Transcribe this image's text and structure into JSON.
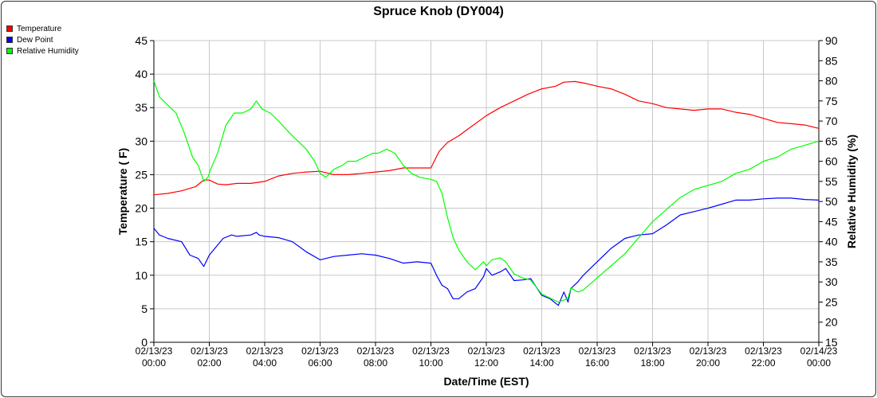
{
  "chart_data": {
    "type": "line",
    "title": "Spruce Knob (DY004)",
    "xlabel": "Date/Time (EST)",
    "ylabel_left": "Temperature ( F)",
    "ylabel_right": "Relative Humidity (%)",
    "ylim_left": [
      0,
      45
    ],
    "ylim_right": [
      15,
      90
    ],
    "yticks_left": [
      0,
      5,
      10,
      15,
      20,
      25,
      30,
      35,
      40,
      45
    ],
    "yticks_right": [
      15,
      20,
      25,
      30,
      35,
      40,
      45,
      50,
      55,
      60,
      65,
      70,
      75,
      80,
      85,
      90
    ],
    "xlim_hours": [
      0,
      24
    ],
    "xticks": [
      {
        "hour": 0,
        "date": "02/13/23",
        "time": "00:00"
      },
      {
        "hour": 2,
        "date": "02/13/23",
        "time": "02:00"
      },
      {
        "hour": 4,
        "date": "02/13/23",
        "time": "04:00"
      },
      {
        "hour": 6,
        "date": "02/13/23",
        "time": "06:00"
      },
      {
        "hour": 8,
        "date": "02/13/23",
        "time": "08:00"
      },
      {
        "hour": 10,
        "date": "02/13/23",
        "time": "10:00"
      },
      {
        "hour": 12,
        "date": "02/13/23",
        "time": "12:00"
      },
      {
        "hour": 14,
        "date": "02/13/23",
        "time": "14:00"
      },
      {
        "hour": 16,
        "date": "02/13/23",
        "time": "16:00"
      },
      {
        "hour": 18,
        "date": "02/13/23",
        "time": "18:00"
      },
      {
        "hour": 20,
        "date": "02/13/23",
        "time": "20:00"
      },
      {
        "hour": 22,
        "date": "02/13/23",
        "time": "22:00"
      },
      {
        "hour": 24,
        "date": "02/14/23",
        "time": "00:00"
      }
    ],
    "grid": true,
    "legend_position": "top-left",
    "series": [
      {
        "name": "Temperature",
        "color": "#ff0000",
        "axis": "left",
        "x": [
          0,
          0.5,
          1,
          1.5,
          1.8,
          2,
          2.3,
          2.6,
          3,
          3.5,
          4,
          4.5,
          5,
          5.5,
          6,
          6.5,
          7,
          7.5,
          8,
          8.5,
          9,
          9.5,
          10,
          10.3,
          10.6,
          11,
          11.5,
          12,
          12.5,
          13,
          13.5,
          14,
          14.5,
          14.8,
          15.2,
          15.6,
          16,
          16.5,
          17,
          17.5,
          18,
          18.5,
          19,
          19.5,
          20,
          20.5,
          21,
          21.5,
          22,
          22.5,
          23,
          23.5,
          24
        ],
        "y": [
          22,
          22.2,
          22.6,
          23.2,
          24.2,
          24.2,
          23.6,
          23.5,
          23.7,
          23.7,
          24,
          24.8,
          25.2,
          25.4,
          25.5,
          25,
          25,
          25.2,
          25.4,
          25.6,
          26,
          26,
          26,
          28.5,
          29.8,
          30.8,
          32.3,
          33.8,
          35,
          36,
          37,
          37.8,
          38.2,
          38.8,
          38.9,
          38.6,
          38.2,
          37.8,
          37,
          36,
          35.6,
          35,
          34.8,
          34.6,
          34.8,
          34.8,
          34.3,
          34,
          33.4,
          32.8,
          32.6,
          32.4,
          31.9
        ]
      },
      {
        "name": "Dew Point",
        "color": "#0000ff",
        "axis": "left",
        "x": [
          0,
          0.2,
          0.5,
          1,
          1.3,
          1.6,
          1.8,
          2,
          2.2,
          2.5,
          2.8,
          3,
          3.5,
          3.7,
          3.8,
          4,
          4.5,
          5,
          5.5,
          6,
          6.5,
          7,
          7.5,
          8,
          8.5,
          9,
          9.5,
          10,
          10.2,
          10.4,
          10.6,
          10.8,
          11,
          11.3,
          11.6,
          11.9,
          12,
          12.2,
          12.5,
          12.7,
          13,
          13.3,
          13.6,
          14,
          14.3,
          14.6,
          14.8,
          14.95,
          15.05,
          15.3,
          15.5,
          16,
          16.5,
          17,
          17.5,
          18,
          18.5,
          19,
          19.5,
          20,
          20.5,
          21,
          21.5,
          22,
          22.5,
          23,
          23.5,
          24
        ],
        "y": [
          17,
          16,
          15.5,
          15,
          13,
          12.5,
          11.3,
          13,
          14,
          15.5,
          16,
          15.8,
          16,
          16.4,
          16,
          15.8,
          15.6,
          15,
          13.5,
          12.3,
          12.8,
          13,
          13.2,
          13,
          12.5,
          11.8,
          12,
          11.8,
          10,
          8.5,
          8,
          6.5,
          6.5,
          7.5,
          8,
          9.8,
          11,
          10,
          10.5,
          11,
          9.2,
          9.3,
          9.5,
          7,
          6.5,
          5.5,
          7.5,
          6,
          8,
          9,
          10,
          12,
          14,
          15.5,
          16,
          16.2,
          17.5,
          19,
          19.5,
          20,
          20.6,
          21.2,
          21.2,
          21.4,
          21.5,
          21.5,
          21.3,
          21.2
        ]
      },
      {
        "name": "Relative Humidity",
        "color": "#00ff00",
        "axis": "right",
        "x": [
          0,
          0.2,
          0.5,
          0.8,
          1.1,
          1.4,
          1.6,
          1.8,
          1.95,
          2.05,
          2.3,
          2.6,
          2.9,
          3.2,
          3.5,
          3.7,
          3.9,
          4.2,
          4.5,
          4.9,
          5.2,
          5.5,
          5.8,
          6,
          6.2,
          6.5,
          6.8,
          7,
          7.3,
          7.6,
          7.9,
          8.1,
          8.4,
          8.7,
          9,
          9.3,
          9.6,
          10,
          10.2,
          10.4,
          10.6,
          10.8,
          11,
          11.3,
          11.6,
          11.9,
          12,
          12.2,
          12.5,
          12.7,
          13,
          13.3,
          13.6,
          14,
          14.3,
          14.6,
          14.8,
          14.95,
          15.05,
          15.3,
          15.5,
          16,
          16.5,
          17,
          17.5,
          18,
          18.5,
          19,
          19.5,
          20,
          20.5,
          21,
          21.5,
          22,
          22.5,
          23,
          23.5,
          24
        ],
        "y": [
          80,
          76,
          74,
          72,
          67,
          61,
          59,
          55,
          56,
          58,
          62,
          69,
          72,
          72,
          73,
          75,
          73,
          72,
          70,
          67,
          65,
          63,
          60,
          57,
          56,
          58,
          59,
          60,
          60,
          61,
          62,
          62,
          63,
          62,
          59,
          57,
          56,
          55.5,
          55,
          52,
          46,
          41,
          38,
          35,
          33,
          35,
          34,
          35.5,
          36,
          35,
          32,
          31,
          30.5,
          27,
          26,
          25,
          25.5,
          26,
          28.5,
          27.5,
          28,
          31,
          34,
          37,
          41,
          45,
          48,
          51,
          53,
          54,
          55,
          57,
          58,
          60,
          61,
          63,
          64,
          65
        ]
      }
    ]
  }
}
